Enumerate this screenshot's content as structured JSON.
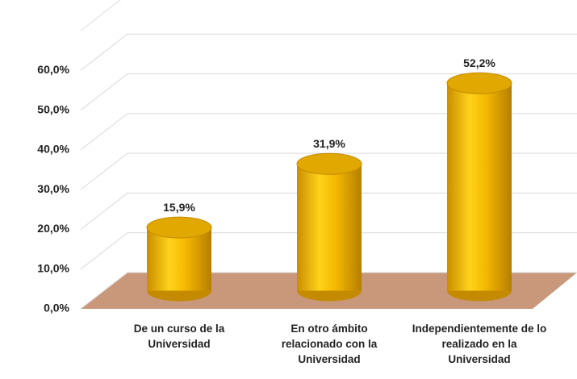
{
  "chart_data": {
    "type": "bar",
    "categories": [
      "De un curso de la Universidad",
      "En otro ámbito relacionado con la Universidad",
      "Independientemente de lo realizado en la Universidad"
    ],
    "values": [
      15.9,
      31.9,
      52.2
    ],
    "value_labels": [
      "15,9%",
      "31,9%",
      "52,2%"
    ],
    "color": "#f5b800",
    "ylim": [
      0,
      70
    ],
    "yticks": [
      {
        "value": 0,
        "label": "0,0%"
      },
      {
        "value": 10,
        "label": "10,0%"
      },
      {
        "value": 20,
        "label": "20,0%"
      },
      {
        "value": 30,
        "label": "30,0%"
      },
      {
        "value": 40,
        "label": "40,0%"
      },
      {
        "value": 50,
        "label": "50,0%"
      },
      {
        "value": 60,
        "label": "60,0%"
      }
    ],
    "grid": true
  }
}
